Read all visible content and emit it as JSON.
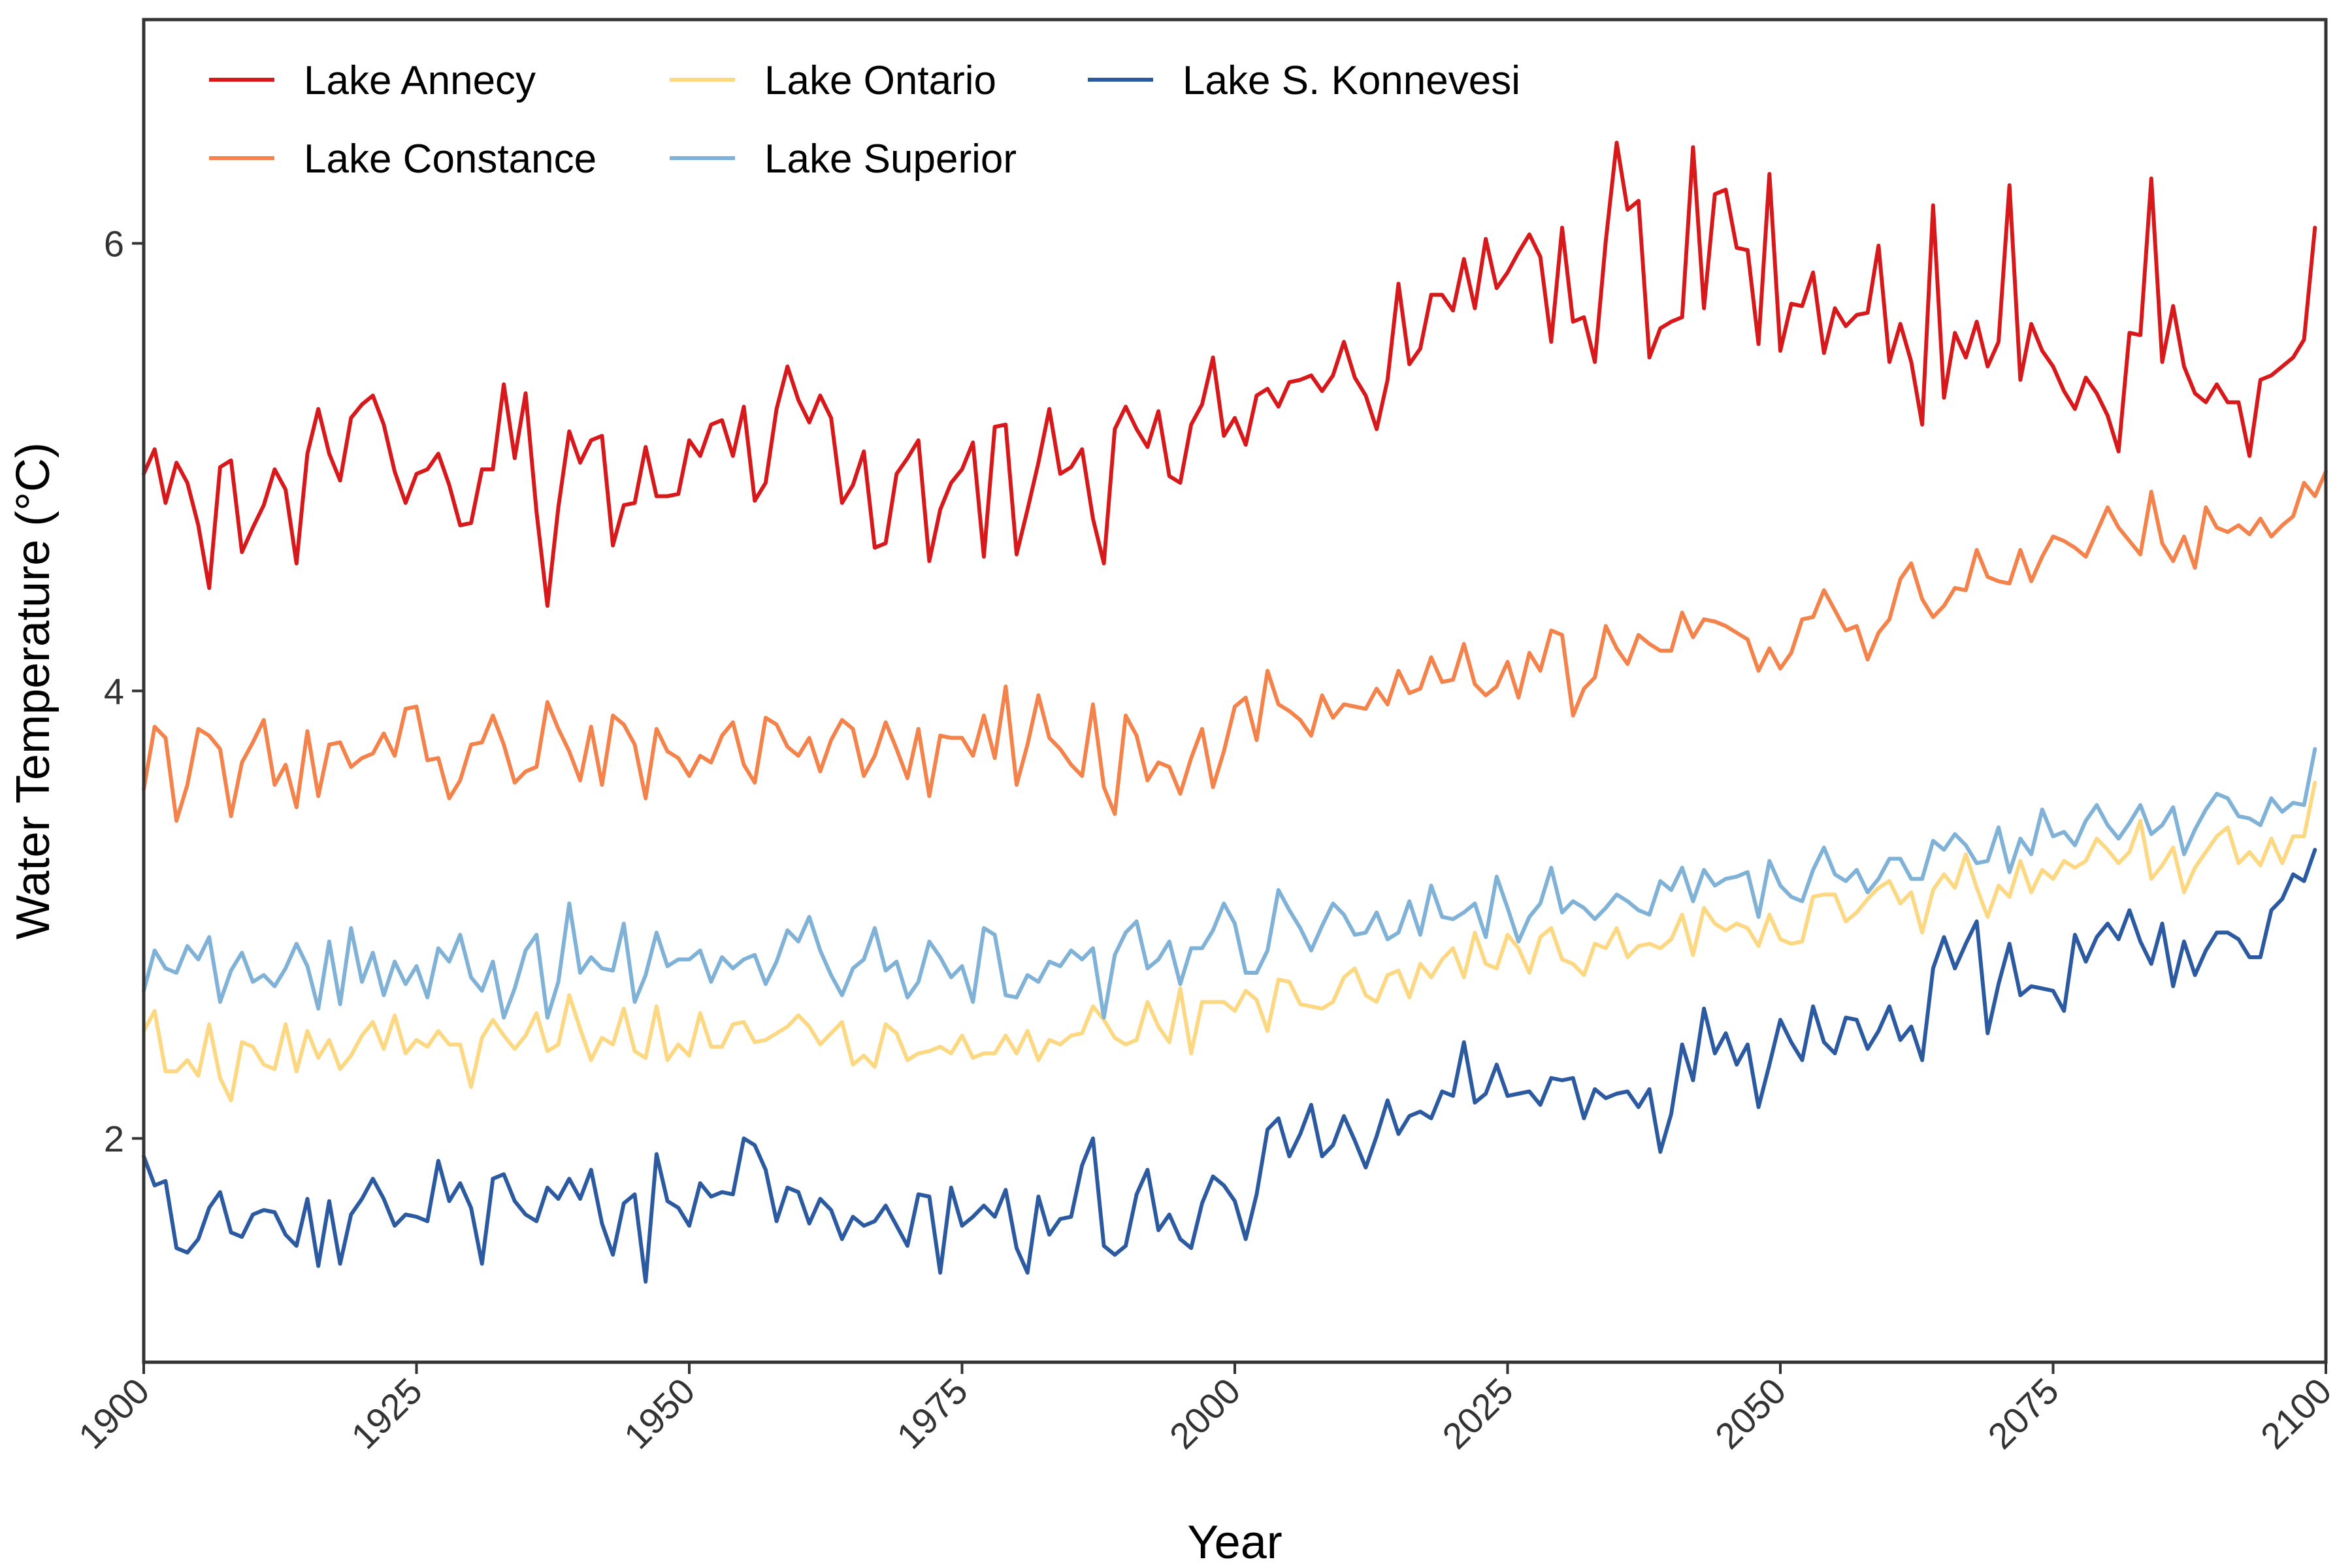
{
  "chart_data": {
    "type": "line",
    "xlabel": "Year",
    "ylabel": "Water Temperature (°C)",
    "xlim": [
      1900,
      2100
    ],
    "ylim": [
      1.0,
      7.0
    ],
    "x_ticks": [
      1900,
      1925,
      1950,
      1975,
      2000,
      2025,
      2050,
      2075,
      2100
    ],
    "y_ticks": [
      2,
      4,
      6
    ],
    "legend_position": "top-left",
    "grid": false,
    "x_start": 1900,
    "x_step": 1,
    "series": [
      {
        "name": "Lake Annecy",
        "color": "#d7191c",
        "values": [
          4.97,
          5.08,
          4.84,
          5.02,
          4.93,
          4.74,
          4.46,
          5.0,
          5.03,
          4.62,
          4.73,
          4.83,
          4.99,
          4.9,
          4.57,
          5.06,
          5.26,
          5.06,
          4.94,
          5.22,
          5.28,
          5.32,
          5.19,
          4.98,
          4.84,
          4.97,
          4.99,
          5.06,
          4.92,
          4.74,
          4.75,
          4.99,
          4.99,
          5.37,
          5.04,
          5.33,
          4.8,
          4.38,
          4.82,
          5.16,
          5.02,
          5.12,
          5.14,
          4.65,
          4.83,
          4.84,
          5.09,
          4.87,
          4.87,
          4.88,
          5.12,
          5.05,
          5.19,
          5.21,
          5.05,
          5.27,
          4.85,
          4.93,
          5.26,
          5.45,
          5.3,
          5.2,
          5.32,
          5.22,
          4.84,
          4.92,
          5.07,
          4.64,
          4.66,
          4.97,
          5.04,
          5.12,
          4.58,
          4.81,
          4.93,
          4.99,
          5.11,
          4.6,
          5.18,
          5.19,
          4.61,
          4.81,
          5.02,
          5.26,
          4.97,
          5.0,
          5.08,
          4.77,
          4.57,
          5.17,
          5.27,
          5.17,
          5.09,
          5.25,
          4.96,
          4.93,
          5.19,
          5.28,
          5.49,
          5.14,
          5.22,
          5.1,
          5.32,
          5.35,
          5.27,
          5.38,
          5.39,
          5.41,
          5.34,
          5.41,
          5.56,
          5.4,
          5.32,
          5.17,
          5.39,
          5.82,
          5.46,
          5.53,
          5.77,
          5.77,
          5.7,
          5.93,
          5.71,
          6.02,
          5.8,
          5.87,
          5.96,
          6.04,
          5.94,
          5.56,
          6.07,
          5.65,
          5.67,
          5.47,
          6.01,
          6.45,
          6.15,
          6.19,
          5.49,
          5.62,
          5.65,
          5.67,
          6.43,
          5.71,
          6.22,
          6.24,
          5.98,
          5.97,
          5.55,
          6.31,
          5.52,
          5.73,
          5.72,
          5.87,
          5.51,
          5.71,
          5.63,
          5.68,
          5.69,
          5.99,
          5.47,
          5.64,
          5.47,
          5.19,
          6.17,
          5.31,
          5.6,
          5.49,
          5.65,
          5.45,
          5.56,
          6.26,
          5.39,
          5.64,
          5.52,
          5.45,
          5.34,
          5.26,
          5.4,
          5.33,
          5.23,
          5.07,
          5.6,
          5.59,
          6.29,
          5.47,
          5.72,
          5.45,
          5.33,
          5.29,
          5.37,
          5.29,
          5.29,
          5.05,
          5.39,
          5.41,
          5.45,
          5.49,
          5.57,
          6.07
        ]
      },
      {
        "name": "Lake Constance",
        "color": "#f4834b",
        "values": [
          3.56,
          3.84,
          3.79,
          3.42,
          3.58,
          3.83,
          3.8,
          3.74,
          3.44,
          3.68,
          3.77,
          3.87,
          3.58,
          3.67,
          3.48,
          3.82,
          3.53,
          3.76,
          3.77,
          3.66,
          3.7,
          3.72,
          3.81,
          3.71,
          3.92,
          3.93,
          3.69,
          3.7,
          3.52,
          3.6,
          3.76,
          3.77,
          3.89,
          3.76,
          3.59,
          3.64,
          3.66,
          3.95,
          3.83,
          3.73,
          3.6,
          3.84,
          3.58,
          3.89,
          3.85,
          3.76,
          3.52,
          3.83,
          3.73,
          3.7,
          3.62,
          3.71,
          3.68,
          3.8,
          3.86,
          3.67,
          3.59,
          3.88,
          3.85,
          3.75,
          3.71,
          3.79,
          3.64,
          3.78,
          3.87,
          3.83,
          3.62,
          3.71,
          3.86,
          3.74,
          3.61,
          3.83,
          3.53,
          3.8,
          3.79,
          3.79,
          3.71,
          3.89,
          3.7,
          4.02,
          3.58,
          3.76,
          3.98,
          3.79,
          3.74,
          3.67,
          3.62,
          3.94,
          3.57,
          3.45,
          3.89,
          3.8,
          3.6,
          3.68,
          3.66,
          3.54,
          3.7,
          3.83,
          3.57,
          3.73,
          3.93,
          3.97,
          3.78,
          4.09,
          3.94,
          3.91,
          3.87,
          3.8,
          3.98,
          3.88,
          3.94,
          3.93,
          3.92,
          4.01,
          3.94,
          4.09,
          3.99,
          4.01,
          4.15,
          4.04,
          4.05,
          4.21,
          4.03,
          3.98,
          4.02,
          4.13,
          3.97,
          4.17,
          4.09,
          4.27,
          4.25,
          3.89,
          4.01,
          4.06,
          4.29,
          4.19,
          4.12,
          4.25,
          4.21,
          4.18,
          4.18,
          4.35,
          4.24,
          4.32,
          4.31,
          4.29,
          4.26,
          4.23,
          4.09,
          4.19,
          4.1,
          4.17,
          4.32,
          4.33,
          4.45,
          4.36,
          4.27,
          4.29,
          4.14,
          4.26,
          4.32,
          4.5,
          4.57,
          4.41,
          4.33,
          4.38,
          4.46,
          4.45,
          4.63,
          4.51,
          4.49,
          4.48,
          4.63,
          4.49,
          4.6,
          4.69,
          4.67,
          4.64,
          4.6,
          4.71,
          4.82,
          4.73,
          4.67,
          4.61,
          4.89,
          4.66,
          4.58,
          4.69,
          4.55,
          4.82,
          4.73,
          4.71,
          4.74,
          4.7,
          4.77,
          4.69,
          4.74,
          4.78,
          4.93,
          4.87,
          4.98
        ]
      },
      {
        "name": "Lake Ontario",
        "color": "#fdd882",
        "values": [
          2.48,
          2.57,
          2.3,
          2.3,
          2.35,
          2.28,
          2.51,
          2.27,
          2.17,
          2.43,
          2.41,
          2.33,
          2.31,
          2.51,
          2.3,
          2.48,
          2.36,
          2.44,
          2.31,
          2.37,
          2.46,
          2.52,
          2.4,
          2.55,
          2.38,
          2.44,
          2.41,
          2.48,
          2.42,
          2.42,
          2.23,
          2.45,
          2.53,
          2.46,
          2.4,
          2.46,
          2.56,
          2.39,
          2.42,
          2.64,
          2.49,
          2.35,
          2.45,
          2.42,
          2.58,
          2.39,
          2.36,
          2.59,
          2.35,
          2.42,
          2.37,
          2.56,
          2.41,
          2.41,
          2.51,
          2.52,
          2.43,
          2.44,
          2.47,
          2.5,
          2.55,
          2.5,
          2.42,
          2.47,
          2.52,
          2.33,
          2.37,
          2.32,
          2.51,
          2.47,
          2.35,
          2.38,
          2.39,
          2.41,
          2.38,
          2.46,
          2.36,
          2.38,
          2.38,
          2.46,
          2.38,
          2.48,
          2.35,
          2.44,
          2.42,
          2.46,
          2.47,
          2.59,
          2.53,
          2.45,
          2.42,
          2.44,
          2.61,
          2.5,
          2.43,
          2.67,
          2.38,
          2.61,
          2.61,
          2.61,
          2.57,
          2.66,
          2.62,
          2.48,
          2.71,
          2.7,
          2.6,
          2.59,
          2.58,
          2.61,
          2.72,
          2.76,
          2.64,
          2.61,
          2.73,
          2.75,
          2.63,
          2.78,
          2.72,
          2.8,
          2.85,
          2.72,
          2.92,
          2.78,
          2.76,
          2.91,
          2.85,
          2.74,
          2.9,
          2.94,
          2.8,
          2.78,
          2.73,
          2.87,
          2.85,
          2.94,
          2.81,
          2.86,
          2.87,
          2.85,
          2.89,
          3.0,
          2.82,
          3.03,
          2.96,
          2.93,
          2.96,
          2.94,
          2.86,
          3.0,
          2.89,
          2.87,
          2.88,
          3.08,
          3.09,
          3.09,
          2.97,
          3.01,
          3.07,
          3.12,
          3.15,
          3.05,
          3.1,
          2.92,
          3.11,
          3.18,
          3.12,
          3.27,
          3.12,
          2.99,
          3.13,
          3.08,
          3.24,
          3.1,
          3.2,
          3.16,
          3.24,
          3.21,
          3.24,
          3.34,
          3.29,
          3.23,
          3.28,
          3.42,
          3.16,
          3.22,
          3.3,
          3.1,
          3.21,
          3.28,
          3.35,
          3.39,
          3.23,
          3.28,
          3.22,
          3.34,
          3.23,
          3.35,
          3.35,
          3.59
        ]
      },
      {
        "name": "Lake Superior",
        "color": "#7fb2d6",
        "values": [
          2.66,
          2.84,
          2.76,
          2.74,
          2.86,
          2.8,
          2.9,
          2.61,
          2.75,
          2.83,
          2.7,
          2.73,
          2.68,
          2.76,
          2.87,
          2.77,
          2.58,
          2.88,
          2.6,
          2.94,
          2.7,
          2.83,
          2.64,
          2.79,
          2.69,
          2.77,
          2.63,
          2.85,
          2.79,
          2.91,
          2.72,
          2.66,
          2.79,
          2.54,
          2.67,
          2.84,
          2.91,
          2.54,
          2.7,
          3.05,
          2.74,
          2.81,
          2.76,
          2.75,
          2.96,
          2.61,
          2.73,
          2.92,
          2.77,
          2.8,
          2.8,
          2.84,
          2.7,
          2.81,
          2.76,
          2.8,
          2.82,
          2.69,
          2.79,
          2.93,
          2.88,
          2.99,
          2.84,
          2.73,
          2.64,
          2.76,
          2.8,
          2.94,
          2.75,
          2.79,
          2.63,
          2.7,
          2.88,
          2.81,
          2.72,
          2.77,
          2.61,
          2.94,
          2.91,
          2.64,
          2.63,
          2.73,
          2.7,
          2.79,
          2.77,
          2.84,
          2.8,
          2.85,
          2.54,
          2.82,
          2.92,
          2.97,
          2.76,
          2.8,
          2.88,
          2.69,
          2.85,
          2.85,
          2.93,
          3.05,
          2.96,
          2.74,
          2.74,
          2.84,
          3.11,
          3.02,
          2.94,
          2.84,
          2.95,
          3.05,
          3.0,
          2.91,
          2.92,
          3.01,
          2.89,
          2.92,
          3.06,
          2.91,
          3.13,
          2.99,
          2.98,
          3.01,
          3.05,
          2.9,
          3.17,
          3.03,
          2.88,
          2.99,
          3.05,
          3.21,
          3.01,
          3.06,
          3.03,
          2.98,
          3.03,
          3.09,
          3.06,
          3.02,
          3.0,
          3.15,
          3.11,
          3.21,
          3.06,
          3.2,
          3.13,
          3.16,
          3.17,
          3.19,
          2.99,
          3.24,
          3.13,
          3.08,
          3.06,
          3.2,
          3.3,
          3.18,
          3.15,
          3.2,
          3.1,
          3.16,
          3.25,
          3.25,
          3.16,
          3.16,
          3.33,
          3.29,
          3.36,
          3.31,
          3.23,
          3.24,
          3.39,
          3.19,
          3.34,
          3.27,
          3.47,
          3.35,
          3.37,
          3.31,
          3.42,
          3.49,
          3.4,
          3.34,
          3.41,
          3.49,
          3.36,
          3.4,
          3.48,
          3.27,
          3.38,
          3.47,
          3.54,
          3.52,
          3.44,
          3.43,
          3.4,
          3.52,
          3.46,
          3.5,
          3.49,
          3.74
        ]
      },
      {
        "name": "Lake S. Konnevesi",
        "color": "#2c5aa0",
        "values": [
          1.92,
          1.79,
          1.81,
          1.51,
          1.49,
          1.55,
          1.69,
          1.76,
          1.58,
          1.56,
          1.66,
          1.68,
          1.67,
          1.57,
          1.52,
          1.73,
          1.43,
          1.72,
          1.44,
          1.66,
          1.73,
          1.82,
          1.73,
          1.61,
          1.66,
          1.65,
          1.63,
          1.9,
          1.72,
          1.8,
          1.69,
          1.44,
          1.82,
          1.84,
          1.72,
          1.66,
          1.63,
          1.78,
          1.73,
          1.82,
          1.73,
          1.86,
          1.62,
          1.48,
          1.71,
          1.75,
          1.36,
          1.93,
          1.72,
          1.69,
          1.61,
          1.8,
          1.74,
          1.76,
          1.75,
          2.0,
          1.97,
          1.86,
          1.63,
          1.78,
          1.76,
          1.62,
          1.73,
          1.68,
          1.55,
          1.65,
          1.61,
          1.63,
          1.7,
          1.61,
          1.52,
          1.75,
          1.74,
          1.4,
          1.78,
          1.61,
          1.65,
          1.7,
          1.65,
          1.77,
          1.51,
          1.4,
          1.74,
          1.57,
          1.64,
          1.65,
          1.88,
          2.0,
          1.52,
          1.48,
          1.52,
          1.75,
          1.86,
          1.59,
          1.66,
          1.55,
          1.51,
          1.71,
          1.83,
          1.79,
          1.72,
          1.55,
          1.75,
          2.04,
          2.09,
          1.92,
          2.02,
          2.15,
          1.92,
          1.97,
          2.1,
          1.99,
          1.87,
          2.01,
          2.17,
          2.02,
          2.1,
          2.12,
          2.09,
          2.21,
          2.19,
          2.43,
          2.16,
          2.2,
          2.33,
          2.19,
          2.2,
          2.21,
          2.15,
          2.27,
          2.26,
          2.27,
          2.09,
          2.22,
          2.18,
          2.2,
          2.21,
          2.14,
          2.22,
          1.94,
          2.11,
          2.42,
          2.26,
          2.58,
          2.38,
          2.47,
          2.33,
          2.42,
          2.14,
          2.33,
          2.53,
          2.43,
          2.35,
          2.59,
          2.43,
          2.38,
          2.54,
          2.53,
          2.4,
          2.48,
          2.59,
          2.44,
          2.5,
          2.35,
          2.76,
          2.9,
          2.76,
          2.87,
          2.97,
          2.47,
          2.69,
          2.87,
          2.64,
          2.68,
          2.67,
          2.66,
          2.57,
          2.91,
          2.79,
          2.9,
          2.96,
          2.89,
          3.02,
          2.88,
          2.78,
          2.96,
          2.68,
          2.88,
          2.73,
          2.84,
          2.92,
          2.92,
          2.89,
          2.81,
          2.81,
          3.02,
          3.07,
          3.18,
          3.15,
          3.29
        ]
      }
    ]
  }
}
